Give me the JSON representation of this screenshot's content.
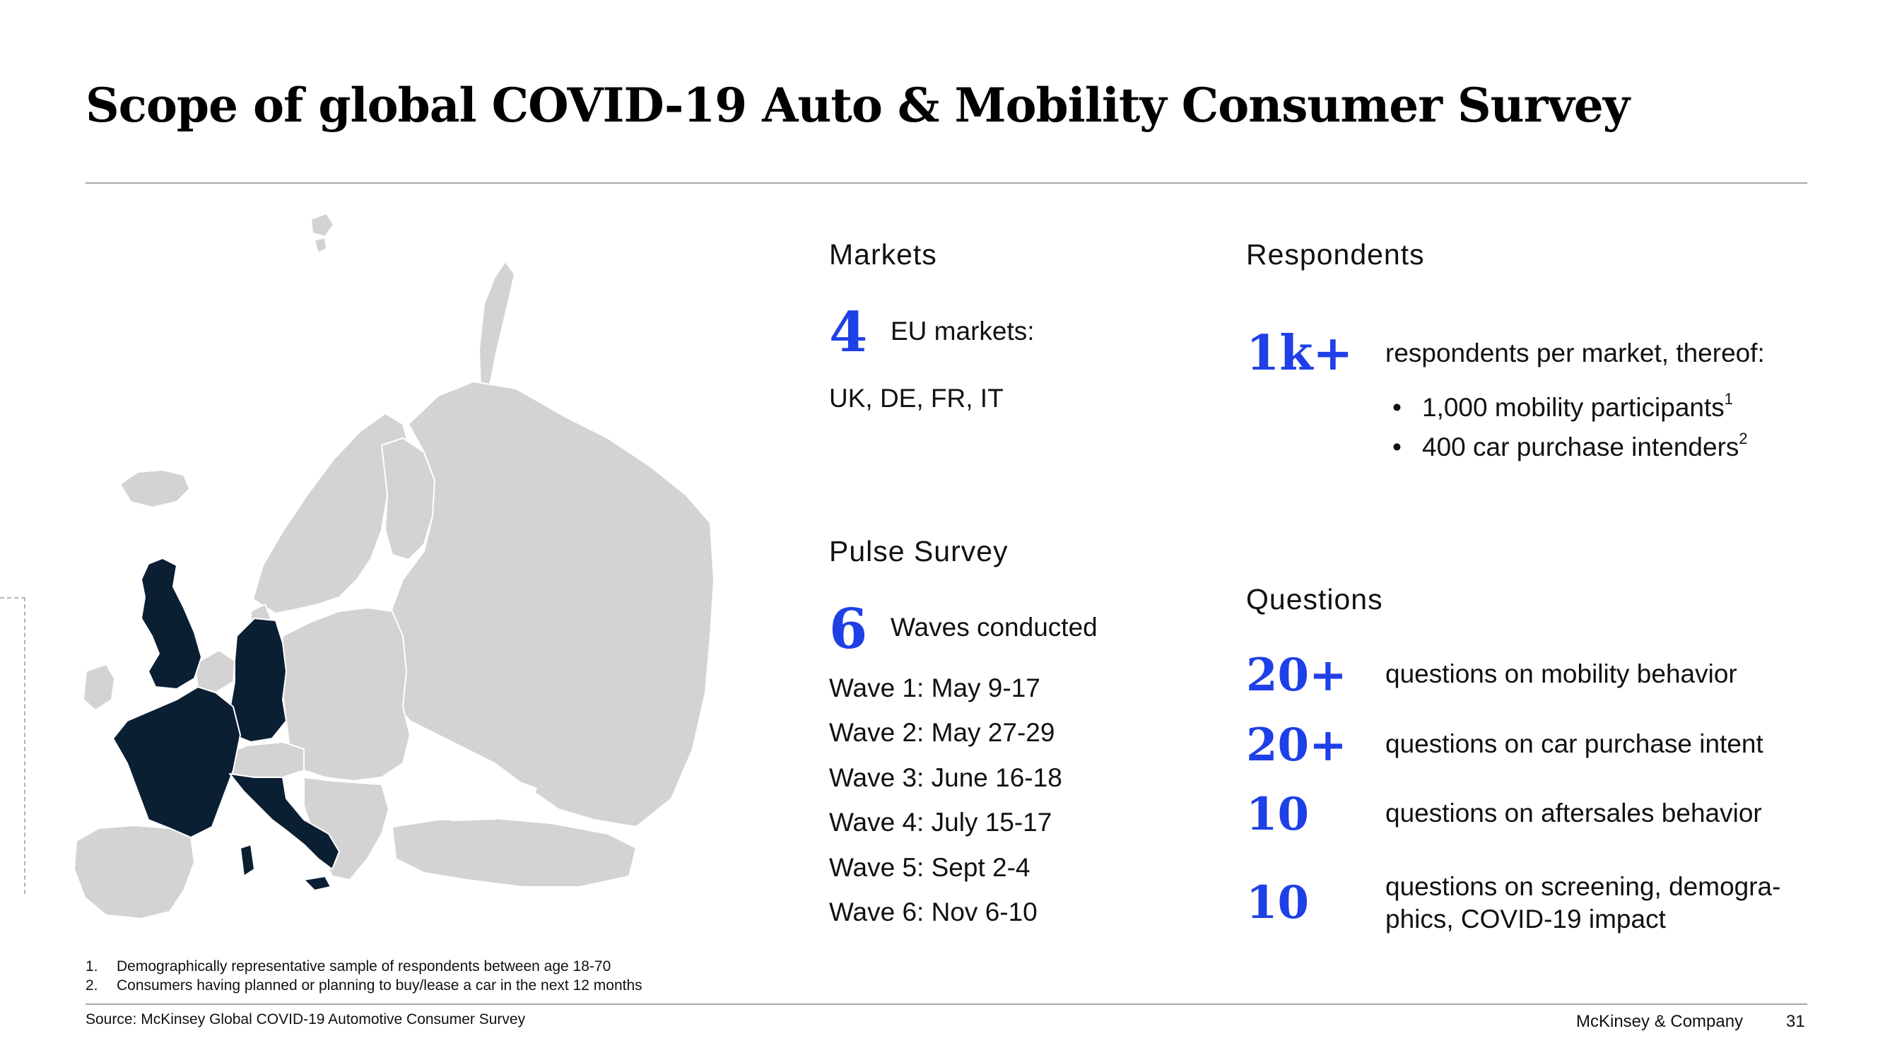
{
  "slide": {
    "title": "Scope of global COVID-19 Auto & Mobility Consumer Survey"
  },
  "markets": {
    "heading": "Markets",
    "count": "4",
    "count_label": "EU markets:",
    "list": "UK, DE, FR, IT"
  },
  "pulse": {
    "heading": "Pulse Survey",
    "count": "6",
    "count_label": "Waves conducted",
    "waves": [
      "Wave 1: May 9-17",
      "Wave 2: May 27-29",
      "Wave 3: June 16-18",
      "Wave 4: July 15-17",
      "Wave 5: Sept 2-4",
      "Wave 6: Nov 6-10"
    ]
  },
  "respondents": {
    "heading": "Respondents",
    "count": "1k+",
    "label": "respondents per market, thereof:",
    "bullets": [
      {
        "text": "1,000 mobility participants",
        "sup": "1"
      },
      {
        "text": "400 car purchase intenders",
        "sup": "2"
      }
    ]
  },
  "questions": {
    "heading": "Questions",
    "items": [
      {
        "count": "20+",
        "label": "questions on mobility behavior"
      },
      {
        "count": "20+",
        "label": "questions on car purchase intent"
      },
      {
        "count": "10",
        "label": "questions on aftersales behavior"
      },
      {
        "count": "10",
        "label_line1": "questions on screening, demogra-",
        "label_line2": "phics, COVID-19 impact"
      }
    ]
  },
  "map": {
    "highlighted_markets": [
      "UK",
      "DE",
      "FR",
      "IT"
    ],
    "highlight_color": "#0b1f33",
    "base_color": "#d3d3d3"
  },
  "footnotes": [
    {
      "num": "1.",
      "text": "Demographically representative sample of respondents between age 18-70"
    },
    {
      "num": "2.",
      "text": "Consumers having planned or planning to buy/lease a car in the next 12 months"
    }
  ],
  "footer": {
    "source": "Source: McKinsey Global COVID-19 Automotive Consumer Survey",
    "brand": "McKinsey & Company",
    "page": "31"
  },
  "colors": {
    "accent": "#1f40e6",
    "rule": "#a8a8a8"
  }
}
